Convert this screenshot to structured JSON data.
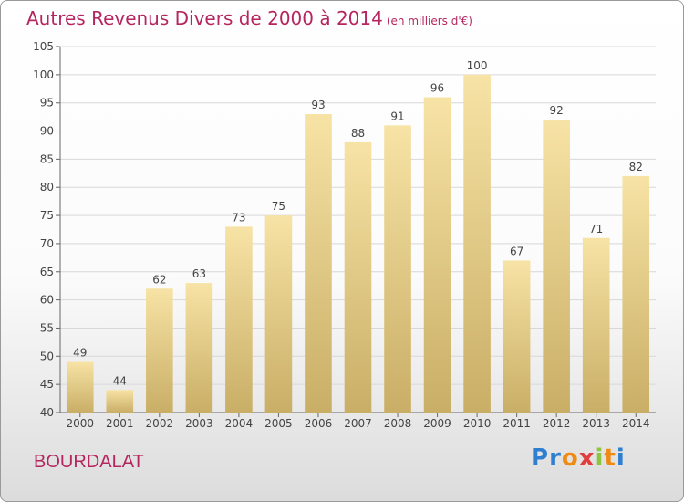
{
  "header": {
    "title": "Autres Revenus Divers de 2000 à 2014",
    "subtitle": "(en milliers d'€)"
  },
  "footer": {
    "location": "BOURDALAT",
    "brand": "Proxiti"
  },
  "colors": {
    "title": "#b5265e",
    "bar_light": "#f7e3a5",
    "bar_dark": "#c9ae66",
    "grid": "#d8d8d8"
  },
  "chart_data": {
    "type": "bar",
    "categories": [
      "2000",
      "2001",
      "2002",
      "2003",
      "2004",
      "2005",
      "2006",
      "2007",
      "2008",
      "2009",
      "2010",
      "2011",
      "2012",
      "2013",
      "2014"
    ],
    "values": [
      49,
      44,
      62,
      63,
      73,
      75,
      93,
      88,
      91,
      96,
      100,
      67,
      92,
      71,
      82
    ],
    "ylim": [
      40,
      105
    ],
    "yticks": [
      40,
      45,
      50,
      55,
      60,
      65,
      70,
      75,
      80,
      85,
      90,
      95,
      100,
      105
    ],
    "grid": true,
    "data_labels": true
  }
}
